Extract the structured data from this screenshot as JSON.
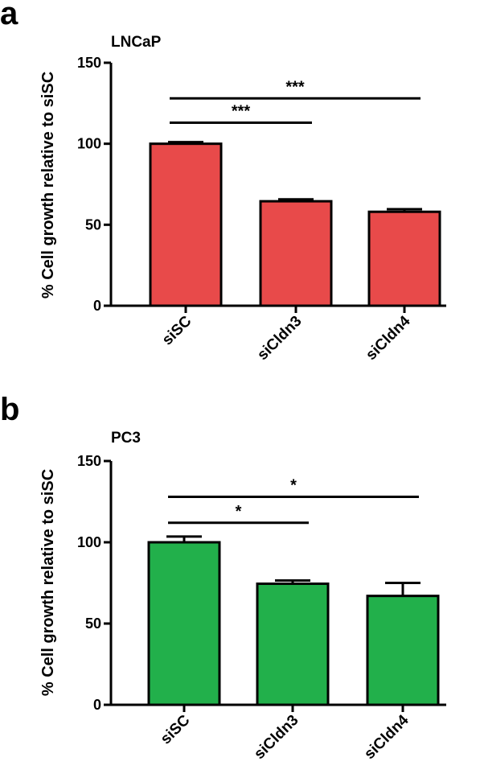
{
  "panels": [
    {
      "letter": "a",
      "chart_data": {
        "type": "bar",
        "title": "LNCaP",
        "ylabel": "% Cell growth relative to siSC",
        "xlabel": "",
        "categories": [
          "siSC",
          "siCldn3",
          "siCldn4"
        ],
        "values": [
          100,
          64.5,
          58
        ],
        "errors": [
          1,
          1.2,
          1.6
        ],
        "ylim": [
          0,
          150
        ],
        "yticks": [
          0,
          50,
          100,
          150
        ],
        "bar_color": "#e84a4a",
        "grid": false,
        "significance": [
          {
            "from": 0,
            "to": 2,
            "label": "***",
            "y": 128
          },
          {
            "from": 0,
            "to": 1,
            "label": "***",
            "y": 113
          }
        ]
      }
    },
    {
      "letter": "b",
      "chart_data": {
        "type": "bar",
        "title": "PC3",
        "ylabel": "% Cell growth relative to siSC",
        "xlabel": "",
        "categories": [
          "siSC",
          "siCldn3",
          "siCldn4"
        ],
        "values": [
          100,
          74.5,
          67
        ],
        "errors": [
          3.5,
          2,
          8
        ],
        "ylim": [
          0,
          150
        ],
        "yticks": [
          0,
          50,
          100,
          150
        ],
        "bar_color": "#22b04b",
        "grid": false,
        "significance": [
          {
            "from": 0,
            "to": 2,
            "label": "*",
            "y": 128
          },
          {
            "from": 0,
            "to": 1,
            "label": "*",
            "y": 112
          }
        ]
      }
    }
  ]
}
